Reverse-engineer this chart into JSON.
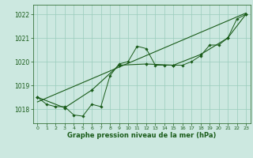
{
  "xlabel": "Graphe pression niveau de la mer (hPa)",
  "x_ticks": [
    0,
    1,
    2,
    3,
    4,
    5,
    6,
    7,
    8,
    9,
    10,
    11,
    12,
    13,
    14,
    15,
    16,
    17,
    18,
    19,
    20,
    21,
    22,
    23
  ],
  "y_ticks": [
    1018,
    1019,
    1020,
    1021,
    1022
  ],
  "ylim": [
    1017.4,
    1022.4
  ],
  "xlim": [
    -0.5,
    23.5
  ],
  "background_color": "#cce8e0",
  "grid_color": "#99ccbb",
  "line_color": "#1a5c1a",
  "series1": [
    1018.5,
    1018.2,
    1018.1,
    1018.1,
    1017.75,
    1017.7,
    1018.2,
    1018.1,
    1019.4,
    1019.9,
    1020.0,
    1020.65,
    1020.55,
    1019.85,
    1019.85,
    1019.85,
    1019.85,
    1020.0,
    1020.25,
    1020.7,
    1020.7,
    1021.0,
    1021.8,
    1022.0
  ],
  "series2_x": [
    0,
    3,
    6,
    9,
    12,
    15,
    18,
    21,
    23
  ],
  "series2_y": [
    1018.5,
    1018.05,
    1018.8,
    1019.85,
    1019.9,
    1019.85,
    1020.3,
    1021.0,
    1022.0
  ],
  "trend_x": [
    0,
    23
  ],
  "trend_y": [
    1018.3,
    1022.05
  ]
}
